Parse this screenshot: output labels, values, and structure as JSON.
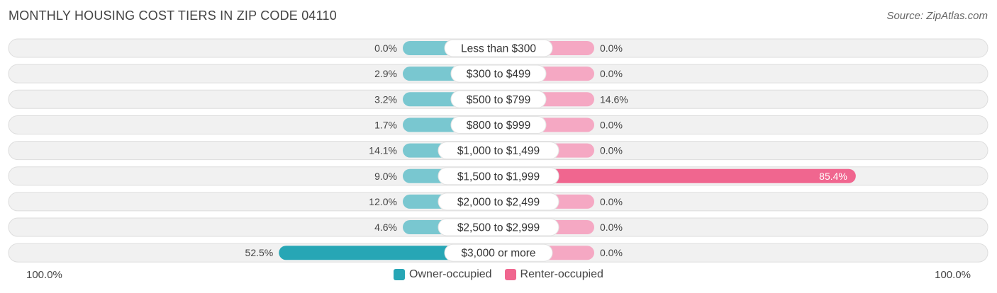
{
  "title": "MONTHLY HOUSING COST TIERS IN ZIP CODE 04110",
  "source": "Source: ZipAtlas.com",
  "colors": {
    "owner_bar": "#79c7d0",
    "owner_bar_strong": "#27a6b5",
    "renter_bar": "#f5a8c3",
    "renter_bar_strong": "#f0668f",
    "track": "#f1f1f1",
    "track_border": "#dddddd"
  },
  "axis": {
    "left_label": "100.0%",
    "right_label": "100.0%"
  },
  "legend": [
    {
      "label": "Owner-occupied",
      "color": "#27a6b5"
    },
    {
      "label": "Renter-occupied",
      "color": "#f0668f"
    }
  ],
  "chart_data": {
    "type": "bar",
    "orientation": "diverging-horizontal",
    "xlim": [
      -100,
      100
    ],
    "categories": [
      "Less than $300",
      "$300 to $499",
      "$500 to $799",
      "$800 to $999",
      "$1,000 to $1,499",
      "$1,500 to $1,999",
      "$2,000 to $2,499",
      "$2,500 to $2,999",
      "$3,000 or more"
    ],
    "series": [
      {
        "name": "Owner-occupied",
        "values": [
          0.0,
          2.9,
          3.2,
          1.7,
          14.1,
          9.0,
          12.0,
          4.6,
          52.5
        ],
        "labels": [
          "0.0%",
          "2.9%",
          "3.2%",
          "1.7%",
          "14.1%",
          "9.0%",
          "12.0%",
          "4.6%",
          "52.5%"
        ]
      },
      {
        "name": "Renter-occupied",
        "values": [
          0.0,
          0.0,
          14.6,
          0.0,
          0.0,
          85.4,
          0.0,
          0.0,
          0.0
        ],
        "labels": [
          "0.0%",
          "0.0%",
          "14.6%",
          "0.0%",
          "0.0%",
          "85.4%",
          "0.0%",
          "0.0%",
          "0.0%"
        ]
      }
    ]
  }
}
